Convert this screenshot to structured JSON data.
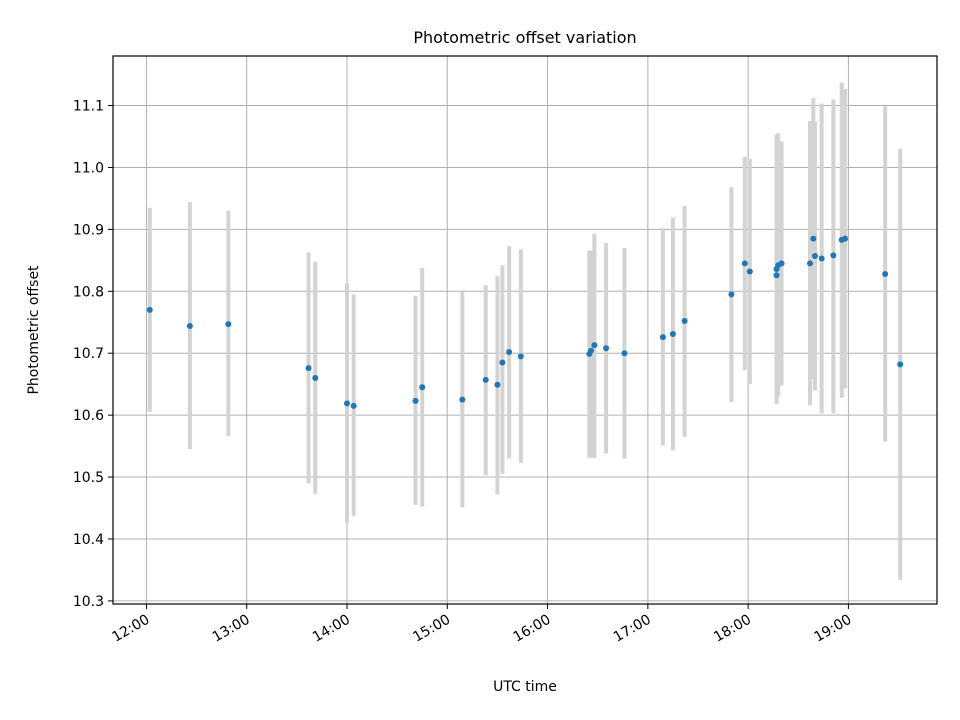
{
  "chart_data": {
    "type": "scatter",
    "title": "Photometric offset variation",
    "xlabel": "UTC time",
    "ylabel": "Photometric offset",
    "x_axis_type": "time",
    "xlim": [
      "11:40",
      "19:53"
    ],
    "ylim": [
      10.295,
      11.18
    ],
    "grid": true,
    "x_ticks": [
      "12:00",
      "13:00",
      "14:00",
      "15:00",
      "16:00",
      "17:00",
      "18:00",
      "19:00"
    ],
    "y_ticks": [
      "10.3",
      "10.4",
      "10.5",
      "10.6",
      "10.7",
      "10.8",
      "10.9",
      "11.0",
      "11.1"
    ],
    "point_color": "#1f77b4",
    "errorbar_color": "#d3d3d3",
    "points": [
      {
        "t": "12:02",
        "y": 10.77,
        "lo": 10.605,
        "hi": 10.935
      },
      {
        "t": "12:26",
        "y": 10.744,
        "lo": 10.545,
        "hi": 10.944
      },
      {
        "t": "12:49",
        "y": 10.747,
        "lo": 10.566,
        "hi": 10.93
      },
      {
        "t": "13:37",
        "y": 10.676,
        "lo": 10.49,
        "hi": 10.863
      },
      {
        "t": "13:41",
        "y": 10.66,
        "lo": 10.473,
        "hi": 10.848
      },
      {
        "t": "14:00",
        "y": 10.619,
        "lo": 10.426,
        "hi": 10.813
      },
      {
        "t": "14:04",
        "y": 10.615,
        "lo": 10.437,
        "hi": 10.795
      },
      {
        "t": "14:41",
        "y": 10.623,
        "lo": 10.455,
        "hi": 10.793
      },
      {
        "t": "14:45",
        "y": 10.645,
        "lo": 10.452,
        "hi": 10.838
      },
      {
        "t": "15:09",
        "y": 10.625,
        "lo": 10.451,
        "hi": 10.799
      },
      {
        "t": "15:23",
        "y": 10.657,
        "lo": 10.503,
        "hi": 10.81
      },
      {
        "t": "15:30",
        "y": 10.649,
        "lo": 10.472,
        "hi": 10.825
      },
      {
        "t": "15:33",
        "y": 10.685,
        "lo": 10.505,
        "hi": 10.842
      },
      {
        "t": "15:37",
        "y": 10.702,
        "lo": 10.53,
        "hi": 10.873
      },
      {
        "t": "15:44",
        "y": 10.695,
        "lo": 10.523,
        "hi": 10.868
      },
      {
        "t": "16:25",
        "y": 10.699,
        "lo": 10.531,
        "hi": 10.866
      },
      {
        "t": "16:26",
        "y": 10.704,
        "lo": 10.531,
        "hi": 10.866
      },
      {
        "t": "16:28",
        "y": 10.713,
        "lo": 10.531,
        "hi": 10.893
      },
      {
        "t": "16:35",
        "y": 10.708,
        "lo": 10.538,
        "hi": 10.878
      },
      {
        "t": "16:46",
        "y": 10.7,
        "lo": 10.53,
        "hi": 10.87
      },
      {
        "t": "17:09",
        "y": 10.726,
        "lo": 10.551,
        "hi": 10.902
      },
      {
        "t": "17:15",
        "y": 10.731,
        "lo": 10.543,
        "hi": 10.919
      },
      {
        "t": "17:22",
        "y": 10.752,
        "lo": 10.565,
        "hi": 10.938
      },
      {
        "t": "17:50",
        "y": 10.795,
        "lo": 10.621,
        "hi": 10.968
      },
      {
        "t": "17:58",
        "y": 10.845,
        "lo": 10.673,
        "hi": 11.017
      },
      {
        "t": "18:01",
        "y": 10.832,
        "lo": 10.65,
        "hi": 11.014
      },
      {
        "t": "18:17",
        "y": 10.836,
        "lo": 10.625,
        "hi": 11.047
      },
      {
        "t": "18:17",
        "y": 10.826,
        "lo": 10.618,
        "hi": 11.053
      },
      {
        "t": "18:18",
        "y": 10.842,
        "lo": 10.63,
        "hi": 11.055
      },
      {
        "t": "18:20",
        "y": 10.845,
        "lo": 10.648,
        "hi": 11.042
      },
      {
        "t": "18:37",
        "y": 10.845,
        "lo": 10.616,
        "hi": 11.075
      },
      {
        "t": "18:39",
        "y": 10.885,
        "lo": 10.658,
        "hi": 11.112
      },
      {
        "t": "18:40",
        "y": 10.857,
        "lo": 10.64,
        "hi": 11.074
      },
      {
        "t": "18:44",
        "y": 10.853,
        "lo": 10.603,
        "hi": 11.103
      },
      {
        "t": "18:51",
        "y": 10.858,
        "lo": 10.603,
        "hi": 11.11
      },
      {
        "t": "18:56",
        "y": 10.883,
        "lo": 10.628,
        "hi": 11.137
      },
      {
        "t": "18:58",
        "y": 10.885,
        "lo": 10.643,
        "hi": 11.127
      },
      {
        "t": "19:22",
        "y": 10.828,
        "lo": 10.557,
        "hi": 11.099
      },
      {
        "t": "19:31",
        "y": 10.682,
        "lo": 10.334,
        "hi": 11.03
      }
    ]
  }
}
